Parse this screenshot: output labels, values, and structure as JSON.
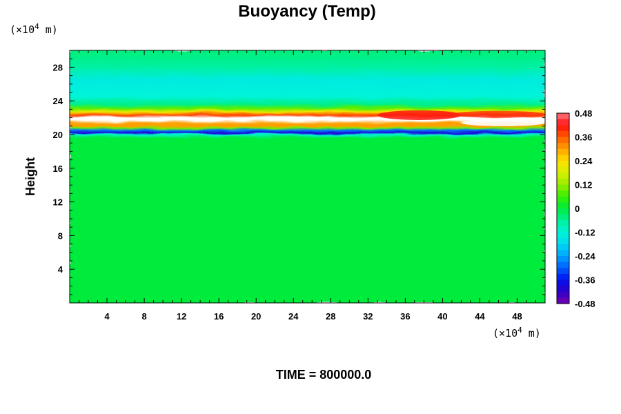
{
  "chart_data": {
    "type": "heatmap",
    "title": "Buoyancy (Temp)",
    "ylabel": "Height",
    "xlabel": "",
    "x_unit_prefix": "(×10",
    "x_unit_exp": "4",
    "x_unit_suffix": " m)",
    "y_unit_prefix": "(×10",
    "y_unit_exp": "4",
    "y_unit_suffix": " m)",
    "xlim": [
      0,
      51
    ],
    "ylim": [
      0,
      30
    ],
    "x_ticks": [
      "4",
      "8",
      "12",
      "16",
      "20",
      "24",
      "28",
      "32",
      "36",
      "40",
      "44",
      "48"
    ],
    "y_ticks": [
      "4",
      "8",
      "12",
      "16",
      "20",
      "24",
      "28"
    ],
    "colorbar": {
      "min": -0.48,
      "max": 0.48,
      "tick_labels": [
        "0.48",
        "0.36",
        "0.24",
        "0.12",
        "0",
        "-0.12",
        "-0.24",
        "-0.36",
        "-0.48"
      ],
      "tick_values": [
        0.48,
        0.36,
        0.24,
        0.12,
        0,
        -0.12,
        -0.24,
        -0.36,
        -0.48
      ]
    },
    "vertical_profile": [
      {
        "height": 0,
        "value": 0.0
      },
      {
        "height": 19.6,
        "value": 0.0
      },
      {
        "height": 20.0,
        "value": -0.12
      },
      {
        "height": 20.2,
        "value": -0.4
      },
      {
        "height": 20.5,
        "value": -0.28
      },
      {
        "height": 20.8,
        "value": 0.1
      },
      {
        "height": 21.0,
        "value": 0.3
      },
      {
        "height": 21.3,
        "value": 0.3
      },
      {
        "height": 21.7,
        "value": 0.55
      },
      {
        "height": 22.0,
        "value": 0.55
      },
      {
        "height": 22.3,
        "value": 0.38
      },
      {
        "height": 22.7,
        "value": 0.22
      },
      {
        "height": 23.1,
        "value": 0.08
      },
      {
        "height": 23.6,
        "value": -0.05
      },
      {
        "height": 24.5,
        "value": -0.12
      },
      {
        "height": 26.5,
        "value": -0.14
      },
      {
        "height": 28.0,
        "value": -0.07
      },
      {
        "height": 30.0,
        "value": -0.04
      }
    ],
    "footer": "TIME = 800000.0"
  }
}
